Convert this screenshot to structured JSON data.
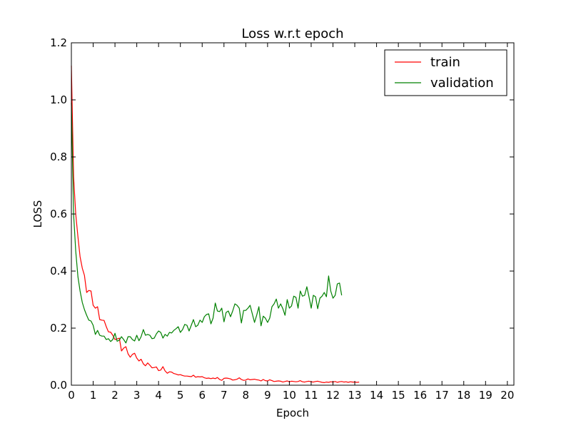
{
  "chart_data": {
    "type": "line",
    "title": "Loss w.r.t epoch",
    "xlabel": "Epoch",
    "ylabel": "LOSS",
    "xlim": [
      0,
      20.3
    ],
    "ylim": [
      0,
      1.2
    ],
    "x_ticks": [
      0,
      1,
      2,
      3,
      4,
      5,
      6,
      7,
      8,
      9,
      10,
      11,
      12,
      13,
      14,
      15,
      16,
      17,
      18,
      19,
      20
    ],
    "y_ticks": [
      "0.0",
      "0.2",
      "0.4",
      "0.6",
      "0.8",
      "1.0",
      "1.2"
    ],
    "grid": false,
    "legend_position": "top-right",
    "x_step": 0.1,
    "series": [
      {
        "name": "train",
        "color": "#ff0000",
        "values": [
          1.12,
          0.73,
          0.6,
          0.52,
          0.45,
          0.41,
          0.385,
          0.325,
          0.332,
          0.33,
          0.28,
          0.27,
          0.275,
          0.23,
          0.228,
          0.227,
          0.205,
          0.187,
          0.186,
          0.175,
          0.16,
          0.162,
          0.165,
          0.12,
          0.13,
          0.135,
          0.11,
          0.098,
          0.108,
          0.112,
          0.095,
          0.085,
          0.091,
          0.075,
          0.068,
          0.078,
          0.07,
          0.061,
          0.062,
          0.064,
          0.051,
          0.053,
          0.065,
          0.05,
          0.042,
          0.047,
          0.046,
          0.041,
          0.039,
          0.036,
          0.037,
          0.034,
          0.032,
          0.032,
          0.031,
          0.03,
          0.035,
          0.028,
          0.03,
          0.029,
          0.03,
          0.026,
          0.024,
          0.025,
          0.023,
          0.025,
          0.023,
          0.027,
          0.02,
          0.017,
          0.024,
          0.025,
          0.024,
          0.022,
          0.018,
          0.019,
          0.021,
          0.026,
          0.02,
          0.017,
          0.018,
          0.022,
          0.019,
          0.02,
          0.021,
          0.019,
          0.018,
          0.015,
          0.02,
          0.016,
          0.015,
          0.019,
          0.016,
          0.013,
          0.014,
          0.015,
          0.014,
          0.011,
          0.013,
          0.015,
          0.012,
          0.014,
          0.013,
          0.012,
          0.013,
          0.016,
          0.012,
          0.011,
          0.013,
          0.014,
          0.012,
          0.011,
          0.013,
          0.014,
          0.012,
          0.01,
          0.009,
          0.011,
          0.01,
          0.012,
          0.011,
          0.013,
          0.01,
          0.012,
          0.013,
          0.011,
          0.012,
          0.01,
          0.012,
          0.011,
          0.011,
          0.01,
          0.011
        ]
      },
      {
        "name": "validation",
        "color": "#008000",
        "values": [
          0.99,
          0.6,
          0.47,
          0.38,
          0.33,
          0.29,
          0.265,
          0.245,
          0.228,
          0.225,
          0.21,
          0.178,
          0.192,
          0.175,
          0.172,
          0.172,
          0.16,
          0.163,
          0.153,
          0.16,
          0.182,
          0.154,
          0.158,
          0.17,
          0.16,
          0.148,
          0.17,
          0.17,
          0.16,
          0.155,
          0.175,
          0.156,
          0.17,
          0.195,
          0.175,
          0.178,
          0.175,
          0.163,
          0.165,
          0.18,
          0.19,
          0.185,
          0.165,
          0.178,
          0.172,
          0.185,
          0.183,
          0.192,
          0.198,
          0.205,
          0.185,
          0.195,
          0.213,
          0.21,
          0.19,
          0.21,
          0.23,
          0.205,
          0.21,
          0.228,
          0.22,
          0.24,
          0.248,
          0.25,
          0.215,
          0.235,
          0.288,
          0.26,
          0.258,
          0.27,
          0.222,
          0.255,
          0.26,
          0.24,
          0.26,
          0.285,
          0.28,
          0.27,
          0.218,
          0.262,
          0.262,
          0.27,
          0.28,
          0.25,
          0.22,
          0.245,
          0.275,
          0.208,
          0.242,
          0.235,
          0.22,
          0.235,
          0.275,
          0.285,
          0.302,
          0.27,
          0.285,
          0.268,
          0.245,
          0.3,
          0.27,
          0.278,
          0.312,
          0.308,
          0.27,
          0.33,
          0.312,
          0.315,
          0.345,
          0.31,
          0.27,
          0.315,
          0.31,
          0.268,
          0.305,
          0.312,
          0.325,
          0.31,
          0.383,
          0.33,
          0.305,
          0.315,
          0.355,
          0.358,
          0.315
        ]
      }
    ]
  }
}
